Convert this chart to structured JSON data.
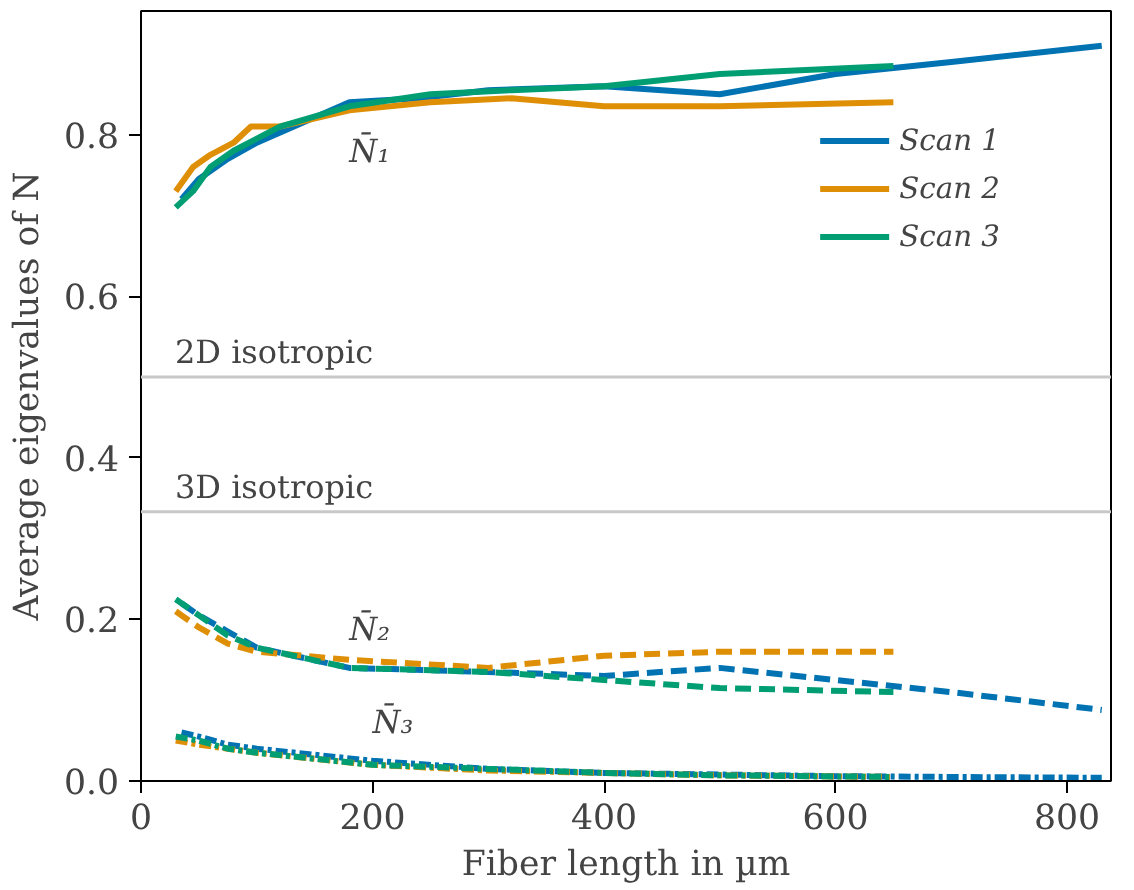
{
  "chart_data": {
    "type": "line",
    "xlabel": "Fiber length in µm",
    "ylabel": "Average eigenvalues of N",
    "xlim": [
      0,
      838
    ],
    "ylim": [
      0,
      0.953
    ],
    "xticks": [
      0,
      200,
      400,
      600,
      800
    ],
    "yticks": [
      {
        "value": 0,
        "label": "0.0"
      },
      {
        "value": 0.2,
        "label": "0.2"
      },
      {
        "value": 0.4,
        "label": "0.4"
      },
      {
        "value": 0.6,
        "label": "0.6"
      },
      {
        "value": 0.8,
        "label": "0.8"
      }
    ],
    "grid": false,
    "legend": "top right",
    "marker": "none",
    "series": [
      {
        "name": "Scan 1",
        "color": "#0173b2",
        "line_style": "solid",
        "x": [
          35,
          50,
          75,
          100,
          180,
          240,
          300,
          400,
          500,
          600,
          700,
          830
        ],
        "values": [
          0.72,
          0.745,
          0.77,
          0.79,
          0.84,
          0.845,
          0.855,
          0.86,
          0.85,
          0.875,
          0.89,
          0.91
        ]
      },
      {
        "name": "Scan 2",
        "color": "#de8f05",
        "line_style": "solid",
        "x": [
          30,
          45,
          60,
          80,
          95,
          120,
          180,
          250,
          320,
          400,
          500,
          650
        ],
        "values": [
          0.73,
          0.76,
          0.775,
          0.79,
          0.81,
          0.81,
          0.83,
          0.84,
          0.845,
          0.835,
          0.835,
          0.84
        ]
      },
      {
        "name": "Scan 3",
        "color": "#029e73",
        "line_style": "solid",
        "x": [
          30,
          45,
          60,
          80,
          120,
          180,
          250,
          320,
          400,
          500,
          650
        ],
        "values": [
          0.71,
          0.73,
          0.76,
          0.78,
          0.81,
          0.835,
          0.85,
          0.855,
          0.86,
          0.875,
          0.885
        ]
      },
      {
        "color": "#0173b2",
        "line_style": "dashed",
        "x": [
          35,
          50,
          75,
          100,
          180,
          300,
          400,
          500,
          600,
          700,
          830
        ],
        "values": [
          0.22,
          0.205,
          0.185,
          0.165,
          0.14,
          0.135,
          0.13,
          0.14,
          0.125,
          0.11,
          0.088
        ]
      },
      {
        "color": "#de8f05",
        "line_style": "dashed",
        "x": [
          30,
          50,
          75,
          100,
          180,
          300,
          400,
          500,
          650
        ],
        "values": [
          0.21,
          0.19,
          0.17,
          0.16,
          0.15,
          0.14,
          0.155,
          0.16,
          0.16
        ]
      },
      {
        "color": "#029e73",
        "line_style": "dashed",
        "x": [
          30,
          50,
          75,
          100,
          180,
          300,
          400,
          500,
          650
        ],
        "values": [
          0.225,
          0.205,
          0.18,
          0.165,
          0.14,
          0.135,
          0.125,
          0.115,
          0.11
        ]
      },
      {
        "color": "#0173b2",
        "line_style": "dashdot",
        "x": [
          35,
          50,
          75,
          100,
          200,
          300,
          400,
          500,
          600,
          700,
          830
        ],
        "values": [
          0.06,
          0.055,
          0.045,
          0.04,
          0.025,
          0.015,
          0.01,
          0.008,
          0.006,
          0.005,
          0.004
        ]
      },
      {
        "color": "#de8f05",
        "line_style": "dashdot",
        "x": [
          30,
          50,
          75,
          100,
          200,
          300,
          400,
          500,
          650
        ],
        "values": [
          0.05,
          0.045,
          0.04,
          0.035,
          0.02,
          0.013,
          0.01,
          0.007,
          0.005
        ]
      },
      {
        "color": "#029e73",
        "line_style": "dashdot",
        "x": [
          30,
          50,
          75,
          100,
          200,
          300,
          400,
          500,
          650
        ],
        "values": [
          0.055,
          0.05,
          0.04,
          0.035,
          0.02,
          0.015,
          0.01,
          0.007,
          0.005
        ]
      }
    ],
    "ref_lines": [
      {
        "axis": "y",
        "value": 0.5,
        "label": "2D isotropic",
        "color": "#c8c8c8"
      },
      {
        "axis": "y",
        "value": 0.3333,
        "label": "3D isotropic",
        "color": "#c8c8c8"
      }
    ],
    "annotations": [
      "N̄₁",
      "N̄₂",
      "N̄₃"
    ]
  }
}
